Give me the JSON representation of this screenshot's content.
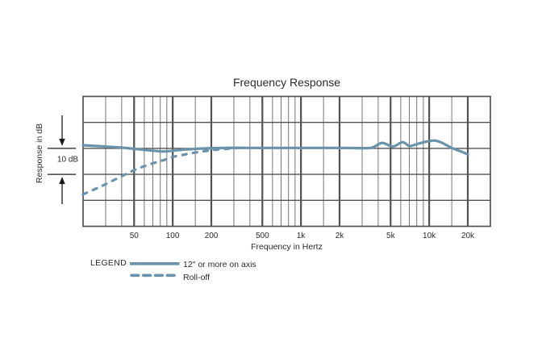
{
  "title": "Frequency Response",
  "colors": {
    "curve": "#6b92ab",
    "grid_minor": "#767676",
    "grid_major": "#525252",
    "text": "#2b2b2b"
  },
  "y_axis": {
    "label": "Response in dB",
    "scale_label": "10 dB"
  },
  "x_axis": {
    "label": "Frequency in Hertz",
    "tick_labels": [
      "50",
      "100",
      "200",
      "500",
      "1k",
      "2k",
      "5k",
      "10k",
      "20k"
    ]
  },
  "legend": {
    "heading": "LEGEND",
    "items": [
      {
        "label": "12\" or more on axis",
        "style": "solid"
      },
      {
        "label": "Roll-off",
        "style": "dashed"
      }
    ]
  },
  "chart_data": {
    "type": "line",
    "x_scale": "log",
    "x_range_hz": [
      20,
      30000
    ],
    "x_major_ticks_hz": [
      50,
      100,
      200,
      500,
      1000,
      2000,
      5000,
      10000,
      20000
    ],
    "x_minor_gridlines_hz": [
      30,
      40,
      60,
      70,
      80,
      90,
      150,
      300,
      400,
      600,
      700,
      800,
      900,
      1500,
      3000,
      4000,
      6000,
      7000,
      8000,
      9000,
      15000
    ],
    "y_db_per_division": 10,
    "y_divisions": 5,
    "zero_db_row": 2,
    "grid": true,
    "legend_position": "below-left",
    "series": [
      {
        "name": "12\" or more on axis",
        "style": "solid",
        "points_hz_db": [
          [
            20,
            1.2
          ],
          [
            28,
            0.8
          ],
          [
            40,
            0.3
          ],
          [
            55,
            -0.4
          ],
          [
            70,
            -0.9
          ],
          [
            85,
            -1.2
          ],
          [
            100,
            -0.9
          ],
          [
            130,
            -0.4
          ],
          [
            180,
            0.0
          ],
          [
            250,
            0.2
          ],
          [
            400,
            0.2
          ],
          [
            700,
            0.2
          ],
          [
            1200,
            0.2
          ],
          [
            2000,
            0.2
          ],
          [
            3000,
            0.1
          ],
          [
            3600,
            0.3
          ],
          [
            4300,
            2.1
          ],
          [
            5200,
            0.7
          ],
          [
            6200,
            2.4
          ],
          [
            7000,
            0.9
          ],
          [
            8000,
            1.6
          ],
          [
            9500,
            2.6
          ],
          [
            11000,
            3.0
          ],
          [
            12500,
            2.2
          ],
          [
            15000,
            0.2
          ],
          [
            17500,
            -1.1
          ],
          [
            20000,
            -2.3
          ]
        ]
      },
      {
        "name": "Roll-off",
        "style": "dashed",
        "points_hz_db": [
          [
            20,
            -17.7
          ],
          [
            25,
            -15.6
          ],
          [
            30,
            -13.8
          ],
          [
            40,
            -10.7
          ],
          [
            50,
            -8.4
          ],
          [
            62,
            -6.6
          ],
          [
            75,
            -5.3
          ],
          [
            88,
            -4.3
          ],
          [
            100,
            -3.3
          ],
          [
            120,
            -2.5
          ],
          [
            150,
            -1.6
          ],
          [
            200,
            -0.7
          ],
          [
            250,
            -0.25
          ],
          [
            310,
            0.1
          ]
        ]
      }
    ]
  }
}
